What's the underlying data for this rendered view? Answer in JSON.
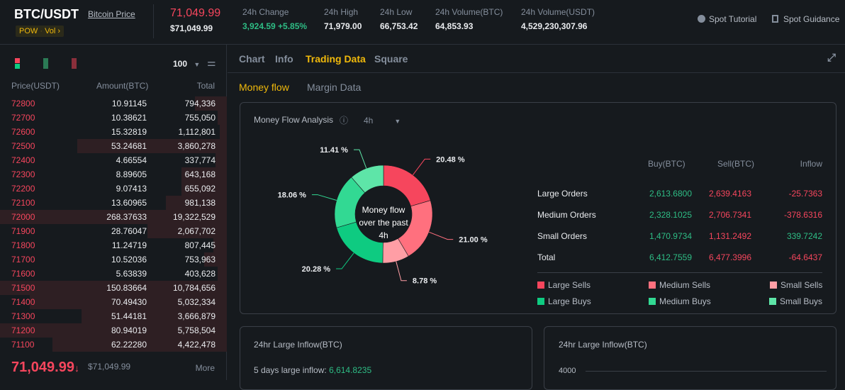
{
  "header": {
    "pair": "BTC/USDT",
    "bitcoin_price_link": "Bitcoin Price",
    "tag_pow": "POW",
    "tag_vol": "Vol ›",
    "last_price": "71,049.99",
    "last_price_usd": "$71,049.99",
    "stats": [
      {
        "label": "24h Change",
        "value": "3,924.59 +5.85%"
      },
      {
        "label": "24h High",
        "value": "71,979.00"
      },
      {
        "label": "24h Low",
        "value": "66,753.42"
      },
      {
        "label": "24h Volume(BTC)",
        "value": "64,853.93"
      },
      {
        "label": "24h Volume(USDT)",
        "value": "4,529,230,307.96"
      }
    ],
    "spot_tutorial": "Spot Tutorial",
    "spot_guidance": "Spot Guidance"
  },
  "orderbook": {
    "precision": "100",
    "headers": [
      "Price(USDT)",
      "Amount(BTC)",
      "Total"
    ],
    "rows": [
      {
        "price": "72800",
        "amount": "10.91145",
        "total": "794,336",
        "depth": 0.14
      },
      {
        "price": "72700",
        "amount": "10.38621",
        "total": "755,050",
        "depth": 0.04
      },
      {
        "price": "72600",
        "amount": "15.32819",
        "total": "1,112,801",
        "depth": 0.03
      },
      {
        "price": "72500",
        "amount": "53.24681",
        "total": "3,860,278",
        "depth": 0.66
      },
      {
        "price": "72400",
        "amount": "4.66554",
        "total": "337,774",
        "depth": 0.05
      },
      {
        "price": "72300",
        "amount": "8.89605",
        "total": "643,168",
        "depth": 0.2
      },
      {
        "price": "72200",
        "amount": "9.07413",
        "total": "655,092",
        "depth": 0.2
      },
      {
        "price": "72100",
        "amount": "13.60965",
        "total": "981,138",
        "depth": 0.27
      },
      {
        "price": "72000",
        "amount": "268.37633",
        "total": "19,322,529",
        "depth": 1.0
      },
      {
        "price": "71900",
        "amount": "28.76047",
        "total": "2,067,702",
        "depth": 0.35
      },
      {
        "price": "71800",
        "amount": "11.24719",
        "total": "807,445",
        "depth": 0.06
      },
      {
        "price": "71700",
        "amount": "10.52036",
        "total": "753,963",
        "depth": 0.1
      },
      {
        "price": "71600",
        "amount": "5.63839",
        "total": "403,628",
        "depth": 0.04
      },
      {
        "price": "71500",
        "amount": "150.83664",
        "total": "10,784,656",
        "depth": 1.0
      },
      {
        "price": "71400",
        "amount": "70.49430",
        "total": "5,032,334",
        "depth": 0.87
      },
      {
        "price": "71300",
        "amount": "51.44181",
        "total": "3,666,879",
        "depth": 0.64
      },
      {
        "price": "71200",
        "amount": "80.94019",
        "total": "5,758,504",
        "depth": 1.0
      },
      {
        "price": "71100",
        "amount": "62.22280",
        "total": "4,422,478",
        "depth": 0.77
      }
    ],
    "current_price": "71,049.99",
    "current_usd": "$71,049.99",
    "more": "More"
  },
  "tabs": [
    "Chart",
    "Info",
    "Trading Data",
    "Square"
  ],
  "subtabs": [
    "Money flow",
    "Margin Data"
  ],
  "money_flow": {
    "title": "Money Flow Analysis",
    "period": "4h",
    "center": [
      "Money flow",
      "over the past",
      "4h"
    ],
    "table": {
      "headers": [
        "Buy(BTC)",
        "Sell(BTC)",
        "Inflow"
      ],
      "rows": [
        {
          "label": "Large Orders",
          "buy": "2,613.6800",
          "sell": "2,639.4163",
          "inflow": "-25.7363"
        },
        {
          "label": "Medium Orders",
          "buy": "2,328.1025",
          "sell": "2,706.7341",
          "inflow": "-378.6316"
        },
        {
          "label": "Small Orders",
          "buy": "1,470.9734",
          "sell": "1,131.2492",
          "inflow": "339.7242"
        },
        {
          "label": "Total",
          "buy": "6,412.7559",
          "sell": "6,477.3996",
          "inflow": "-64.6437"
        }
      ]
    }
  },
  "chart_data": {
    "type": "pie",
    "title": "Money Flow Analysis",
    "slices": [
      {
        "name": "Large Sells",
        "value": 20.48,
        "label": "20.48 %",
        "color": "#f6465d"
      },
      {
        "name": "Medium Sells",
        "value": 21.0,
        "label": "21.00 %",
        "color": "#ff707e"
      },
      {
        "name": "Small Sells",
        "value": 8.78,
        "label": "8.78 %",
        "color": "#ff9ea5"
      },
      {
        "name": "Large Buys",
        "value": 20.28,
        "label": "20.28 %",
        "color": "#0ecb81"
      },
      {
        "name": "Medium Buys",
        "value": 18.06,
        "label": "18.06 %",
        "color": "#32d993"
      },
      {
        "name": "Small Buys",
        "value": 11.41,
        "label": "11.41 %",
        "color": "#5ee5a8"
      }
    ]
  },
  "inflow_card": {
    "title": "24hr Large Inflow(BTC)",
    "five_days_label": "5 days large inflow: ",
    "five_days_value": "6,614.8235"
  },
  "inflow_chart": {
    "title": "24hr Large Inflow(BTC)",
    "y_tick": "4000"
  }
}
